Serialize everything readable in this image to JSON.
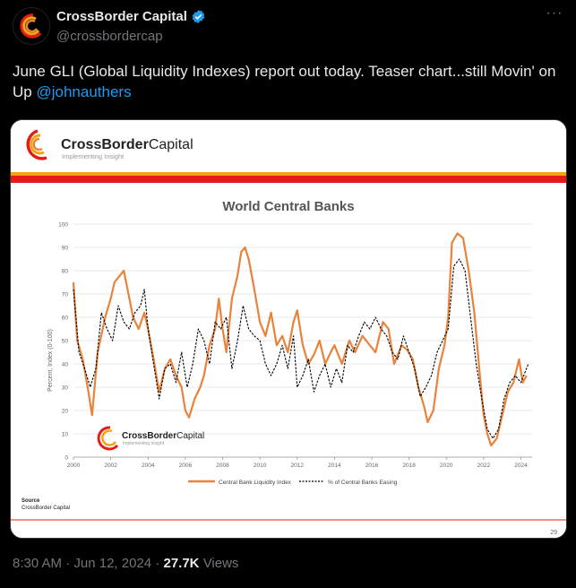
{
  "header": {
    "display_name": "CrossBorder Capital",
    "handle": "@crossbordercap"
  },
  "tweet": {
    "text_main": "June GLI (Global Liquidity Indexes) report out today. Teaser chart...still Movin' on Up ",
    "mention": "@johnauthers"
  },
  "slide": {
    "logo_brand_bold": "CrossBorder",
    "logo_brand_light": "Capital",
    "logo_tagline": "Implementing Insight",
    "watermark_bold": "CrossBorder",
    "watermark_light": "Capital",
    "watermark_tagline": "Implementing Insight",
    "source_label": "Source",
    "source_value": "CrossBorder Capital",
    "page_number": "29",
    "colors": {
      "top_band": "#e41c18",
      "stripe": "#f2a413",
      "liquidity": "#e9823a",
      "easing": "#000000"
    }
  },
  "chart_data": {
    "type": "line",
    "title": "World Central Banks",
    "ylabel": "Percent, Index (0-100)",
    "xlabel": "",
    "xlim": [
      2000,
      2024.6
    ],
    "ylim": [
      0,
      100
    ],
    "x_ticks": [
      "2000",
      "2002",
      "2004",
      "2006",
      "2008",
      "2010",
      "2012",
      "2014",
      "2016",
      "2018",
      "2020",
      "2022",
      "2024"
    ],
    "y_ticks": [
      "0",
      "10",
      "20",
      "30",
      "40",
      "50",
      "60",
      "70",
      "80",
      "90",
      "100"
    ],
    "grid": true,
    "legend_position": "bottom",
    "series": [
      {
        "name": "Central Bank Liquidity Index",
        "color": "#e9823a",
        "style": "solid",
        "points": [
          [
            2000.0,
            75
          ],
          [
            2000.2,
            50
          ],
          [
            2000.5,
            42
          ],
          [
            2000.8,
            28
          ],
          [
            2001.0,
            18
          ],
          [
            2001.3,
            45
          ],
          [
            2001.7,
            60
          ],
          [
            2002.0,
            68
          ],
          [
            2002.2,
            75
          ],
          [
            2002.5,
            78
          ],
          [
            2002.7,
            80
          ],
          [
            2002.9,
            72
          ],
          [
            2003.2,
            60
          ],
          [
            2003.5,
            55
          ],
          [
            2003.8,
            62
          ],
          [
            2004.0,
            55
          ],
          [
            2004.3,
            42
          ],
          [
            2004.6,
            28
          ],
          [
            2004.9,
            38
          ],
          [
            2005.2,
            42
          ],
          [
            2005.5,
            35
          ],
          [
            2005.8,
            30
          ],
          [
            2006.0,
            20
          ],
          [
            2006.2,
            17
          ],
          [
            2006.5,
            25
          ],
          [
            2006.8,
            30
          ],
          [
            2007.0,
            35
          ],
          [
            2007.3,
            48
          ],
          [
            2007.6,
            55
          ],
          [
            2007.8,
            68
          ],
          [
            2008.0,
            55
          ],
          [
            2008.2,
            45
          ],
          [
            2008.5,
            68
          ],
          [
            2008.8,
            78
          ],
          [
            2009.0,
            88
          ],
          [
            2009.2,
            90
          ],
          [
            2009.4,
            85
          ],
          [
            2009.7,
            72
          ],
          [
            2010.0,
            58
          ],
          [
            2010.3,
            52
          ],
          [
            2010.6,
            62
          ],
          [
            2010.9,
            48
          ],
          [
            2011.2,
            52
          ],
          [
            2011.5,
            45
          ],
          [
            2011.8,
            58
          ],
          [
            2012.0,
            63
          ],
          [
            2012.3,
            48
          ],
          [
            2012.6,
            40
          ],
          [
            2012.9,
            44
          ],
          [
            2013.2,
            50
          ],
          [
            2013.5,
            40
          ],
          [
            2013.8,
            45
          ],
          [
            2014.0,
            48
          ],
          [
            2014.4,
            40
          ],
          [
            2014.8,
            50
          ],
          [
            2015.1,
            45
          ],
          [
            2015.5,
            52
          ],
          [
            2015.9,
            48
          ],
          [
            2016.2,
            45
          ],
          [
            2016.6,
            58
          ],
          [
            2016.9,
            55
          ],
          [
            2017.2,
            40
          ],
          [
            2017.6,
            48
          ],
          [
            2017.9,
            46
          ],
          [
            2018.2,
            42
          ],
          [
            2018.5,
            30
          ],
          [
            2018.8,
            22
          ],
          [
            2019.0,
            15
          ],
          [
            2019.3,
            20
          ],
          [
            2019.6,
            38
          ],
          [
            2019.9,
            48
          ],
          [
            2020.1,
            60
          ],
          [
            2020.3,
            92
          ],
          [
            2020.6,
            96
          ],
          [
            2020.9,
            94
          ],
          [
            2021.2,
            80
          ],
          [
            2021.5,
            62
          ],
          [
            2021.8,
            35
          ],
          [
            2022.0,
            18
          ],
          [
            2022.2,
            10
          ],
          [
            2022.4,
            5
          ],
          [
            2022.7,
            8
          ],
          [
            2023.0,
            18
          ],
          [
            2023.3,
            28
          ],
          [
            2023.6,
            32
          ],
          [
            2023.9,
            42
          ],
          [
            2024.1,
            32
          ],
          [
            2024.3,
            35
          ]
        ]
      },
      {
        "name": "% of Central Banks Easing",
        "color": "#000000",
        "style": "dashed",
        "points": [
          [
            2000.0,
            72
          ],
          [
            2000.3,
            45
          ],
          [
            2000.6,
            38
          ],
          [
            2000.9,
            30
          ],
          [
            2001.2,
            38
          ],
          [
            2001.5,
            62
          ],
          [
            2001.8,
            55
          ],
          [
            2002.1,
            50
          ],
          [
            2002.4,
            65
          ],
          [
            2002.7,
            58
          ],
          [
            2003.0,
            55
          ],
          [
            2003.3,
            62
          ],
          [
            2003.6,
            65
          ],
          [
            2003.8,
            72
          ],
          [
            2004.0,
            55
          ],
          [
            2004.3,
            40
          ],
          [
            2004.6,
            25
          ],
          [
            2004.9,
            38
          ],
          [
            2005.2,
            40
          ],
          [
            2005.5,
            32
          ],
          [
            2005.8,
            45
          ],
          [
            2006.1,
            30
          ],
          [
            2006.4,
            40
          ],
          [
            2006.7,
            55
          ],
          [
            2007.0,
            50
          ],
          [
            2007.3,
            40
          ],
          [
            2007.6,
            58
          ],
          [
            2007.9,
            55
          ],
          [
            2008.2,
            60
          ],
          [
            2008.5,
            38
          ],
          [
            2008.8,
            50
          ],
          [
            2009.1,
            65
          ],
          [
            2009.4,
            55
          ],
          [
            2009.7,
            52
          ],
          [
            2010.0,
            50
          ],
          [
            2010.3,
            40
          ],
          [
            2010.6,
            35
          ],
          [
            2010.9,
            40
          ],
          [
            2011.2,
            48
          ],
          [
            2011.5,
            38
          ],
          [
            2011.8,
            52
          ],
          [
            2012.0,
            30
          ],
          [
            2012.3,
            35
          ],
          [
            2012.6,
            42
          ],
          [
            2012.9,
            28
          ],
          [
            2013.2,
            35
          ],
          [
            2013.5,
            40
          ],
          [
            2013.8,
            30
          ],
          [
            2014.1,
            38
          ],
          [
            2014.4,
            32
          ],
          [
            2014.7,
            48
          ],
          [
            2015.0,
            45
          ],
          [
            2015.3,
            52
          ],
          [
            2015.6,
            58
          ],
          [
            2015.9,
            55
          ],
          [
            2016.2,
            60
          ],
          [
            2016.5,
            55
          ],
          [
            2016.8,
            52
          ],
          [
            2017.1,
            45
          ],
          [
            2017.4,
            42
          ],
          [
            2017.7,
            52
          ],
          [
            2018.0,
            45
          ],
          [
            2018.3,
            38
          ],
          [
            2018.6,
            26
          ],
          [
            2018.9,
            30
          ],
          [
            2019.2,
            35
          ],
          [
            2019.5,
            45
          ],
          [
            2019.8,
            50
          ],
          [
            2020.1,
            55
          ],
          [
            2020.4,
            82
          ],
          [
            2020.7,
            85
          ],
          [
            2021.0,
            80
          ],
          [
            2021.3,
            60
          ],
          [
            2021.6,
            40
          ],
          [
            2021.9,
            25
          ],
          [
            2022.2,
            12
          ],
          [
            2022.5,
            8
          ],
          [
            2022.8,
            12
          ],
          [
            2023.1,
            25
          ],
          [
            2023.4,
            32
          ],
          [
            2023.7,
            35
          ],
          [
            2024.0,
            32
          ],
          [
            2024.2,
            36
          ],
          [
            2024.4,
            40
          ]
        ]
      }
    ]
  },
  "footer": {
    "time": "8:30 AM",
    "date": "Jun 12, 2024",
    "views_count": "27.7K",
    "views_label": "Views"
  }
}
